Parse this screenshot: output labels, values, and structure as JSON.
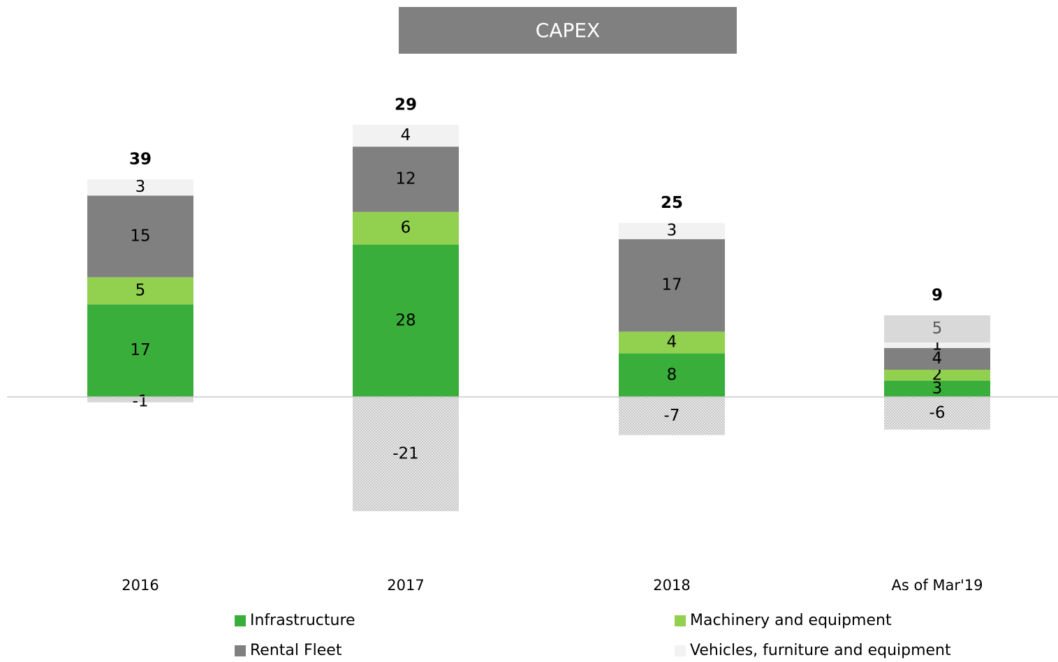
{
  "chart_data": {
    "type": "stacked_bar",
    "title": "CAPEX",
    "categories": [
      "2016",
      "2017",
      "2018",
      "As of Mar'19"
    ],
    "series": [
      {
        "name": "Infrastructure",
        "color": "#3aae3a",
        "values": [
          17,
          28,
          8,
          3
        ]
      },
      {
        "name": "Machinery and equipment",
        "color": "#92d050",
        "values": [
          5,
          6,
          4,
          2
        ]
      },
      {
        "name": "Rental Fleet",
        "color": "#808080",
        "values": [
          15,
          12,
          17,
          4
        ]
      },
      {
        "name": "Vehicles, furniture and equipment",
        "color": "#f2f2f2",
        "values": [
          3,
          4,
          3,
          1
        ]
      },
      {
        "color": "#d9d9d9",
        "label_color": "#595959",
        "values": [
          null,
          null,
          null,
          5
        ]
      },
      {
        "color": "#d0d0d0",
        "pattern": "dotted",
        "values": [
          -1,
          -21,
          -7,
          -6
        ]
      }
    ],
    "totals": [
      39,
      29,
      25,
      9
    ]
  }
}
